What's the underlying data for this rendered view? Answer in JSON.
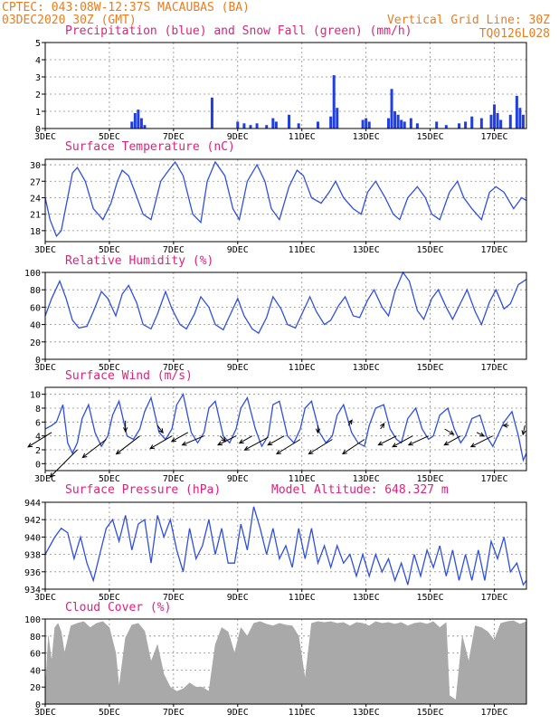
{
  "header": {
    "left_line1": "CPTEC:  043:08W-12:37S  MACAUBAS (BA)",
    "left_line2": "03DEC2020 30Z (GMT)",
    "right_line1": "Vertical Grid Line: 30Z",
    "right_line2": "TQ0126L028"
  },
  "colors": {
    "header": "#e87d1e",
    "title": "#e0207a",
    "precip": "#1f3fe0",
    "snow": "#1aa81a",
    "line": "#2f4fe0",
    "cloud": "#a9a9a9",
    "wind_arrow": "#000000"
  },
  "x_axis": {
    "start_day": 3,
    "end_day": 18,
    "ticks": [
      "3DEC",
      "5DEC",
      "7DEC",
      "9DEC",
      "11DEC",
      "13DEC",
      "15DEC",
      "17DEC"
    ],
    "tick_days": [
      3,
      5,
      7,
      9,
      11,
      13,
      15,
      17
    ]
  },
  "chart_data": [
    {
      "type": "bar",
      "title": "Precipitation (blue) and Snow Fall (green) (mm/h)",
      "ylim": [
        0,
        5
      ],
      "yticks": [
        0,
        1,
        2,
        3,
        4,
        5
      ],
      "grid": true,
      "series": [
        {
          "name": "Precipitation (blue)",
          "x": [
            5.7,
            5.8,
            5.9,
            6.0,
            6.1,
            8.2,
            9.0,
            9.2,
            9.4,
            9.6,
            9.9,
            10.1,
            10.2,
            10.6,
            10.9,
            11.5,
            11.9,
            12.0,
            12.1,
            12.9,
            13.0,
            13.1,
            13.7,
            13.8,
            13.9,
            14.0,
            14.1,
            14.2,
            14.4,
            14.6,
            15.2,
            15.5,
            15.9,
            16.1,
            16.3,
            16.6,
            16.9,
            17.0,
            17.1,
            17.2,
            17.5,
            17.7,
            17.8,
            17.9
          ],
          "values": [
            0.4,
            0.9,
            1.1,
            0.6,
            0.2,
            1.8,
            0.4,
            0.3,
            0.2,
            0.3,
            0.2,
            0.6,
            0.4,
            0.8,
            0.3,
            0.4,
            0.7,
            3.1,
            1.2,
            0.5,
            0.6,
            0.4,
            0.6,
            2.3,
            1.0,
            0.8,
            0.5,
            0.4,
            0.6,
            0.3,
            0.4,
            0.2,
            0.3,
            0.4,
            0.7,
            0.6,
            0.8,
            1.4,
            0.9,
            0.5,
            0.8,
            1.9,
            1.2,
            0.8
          ]
        },
        {
          "name": "Snow Fall (green)",
          "x": [],
          "values": []
        }
      ]
    },
    {
      "type": "line",
      "title": "Surface Temperature (nC)",
      "ylim": [
        16,
        31
      ],
      "yticks": [
        18,
        21,
        24,
        27,
        30
      ],
      "grid": true,
      "x": [
        3.0,
        3.15,
        3.35,
        3.5,
        3.7,
        3.85,
        4.0,
        4.25,
        4.5,
        4.8,
        5.05,
        5.25,
        5.4,
        5.6,
        5.8,
        6.05,
        6.3,
        6.6,
        6.85,
        7.05,
        7.3,
        7.6,
        7.85,
        8.05,
        8.3,
        8.6,
        8.85,
        9.05,
        9.3,
        9.6,
        9.85,
        10.05,
        10.3,
        10.6,
        10.85,
        11.05,
        11.3,
        11.6,
        11.85,
        12.05,
        12.3,
        12.6,
        12.85,
        13.05,
        13.3,
        13.6,
        13.85,
        14.05,
        14.3,
        14.6,
        14.85,
        15.05,
        15.3,
        15.6,
        15.85,
        16.05,
        16.3,
        16.6,
        16.85,
        17.05,
        17.3,
        17.6,
        17.85,
        18.0
      ],
      "values": [
        24,
        20,
        17,
        18,
        24,
        28.5,
        29.5,
        27,
        22,
        20,
        23,
        27,
        29,
        28,
        25,
        21,
        20,
        27,
        29,
        30.5,
        28,
        21,
        19.5,
        27,
        30.5,
        28,
        22,
        20,
        27,
        30,
        27,
        22,
        20,
        26,
        29,
        28,
        24,
        23,
        25,
        27,
        24,
        22,
        21,
        25,
        27,
        24,
        21,
        20,
        24,
        26,
        24,
        21,
        20,
        25,
        27,
        24,
        22,
        20,
        25,
        26,
        25,
        22,
        24,
        23.5
      ]
    },
    {
      "type": "line",
      "title": "Relative Humidity (%)",
      "ylim": [
        0,
        100
      ],
      "yticks": [
        0,
        20,
        40,
        60,
        80,
        100
      ],
      "grid": true,
      "x": [
        3.0,
        3.2,
        3.45,
        3.65,
        3.85,
        4.05,
        4.3,
        4.5,
        4.75,
        4.95,
        5.2,
        5.4,
        5.6,
        5.85,
        6.05,
        6.3,
        6.5,
        6.75,
        6.95,
        7.2,
        7.4,
        7.65,
        7.85,
        8.1,
        8.3,
        8.55,
        8.75,
        9.0,
        9.2,
        9.45,
        9.65,
        9.9,
        10.1,
        10.35,
        10.55,
        10.8,
        11.0,
        11.25,
        11.45,
        11.7,
        11.9,
        12.15,
        12.35,
        12.6,
        12.8,
        13.05,
        13.25,
        13.5,
        13.7,
        13.9,
        14.15,
        14.35,
        14.6,
        14.8,
        15.05,
        15.25,
        15.5,
        15.7,
        15.95,
        16.15,
        16.4,
        16.6,
        16.85,
        17.05,
        17.3,
        17.5,
        17.75,
        18.0
      ],
      "values": [
        50,
        70,
        90,
        70,
        45,
        36,
        38,
        55,
        78,
        70,
        50,
        75,
        85,
        65,
        40,
        35,
        52,
        78,
        58,
        40,
        35,
        52,
        72,
        60,
        40,
        34,
        50,
        70,
        50,
        35,
        30,
        48,
        72,
        58,
        40,
        36,
        52,
        72,
        55,
        40,
        45,
        62,
        72,
        50,
        48,
        68,
        80,
        60,
        50,
        78,
        100,
        90,
        56,
        46,
        70,
        80,
        60,
        46,
        65,
        80,
        55,
        40,
        66,
        80,
        58,
        64,
        86,
        92
      ]
    },
    {
      "type": "line",
      "title": "Surface Wind (m/s)",
      "ylim": [
        -1,
        11
      ],
      "yticks": [
        0,
        2,
        4,
        6,
        8,
        10
      ],
      "grid": true,
      "x": [
        3.0,
        3.2,
        3.35,
        3.55,
        3.7,
        3.85,
        4.0,
        4.15,
        4.35,
        4.55,
        4.75,
        4.95,
        5.1,
        5.3,
        5.55,
        5.75,
        5.95,
        6.1,
        6.3,
        6.55,
        6.75,
        6.95,
        7.1,
        7.3,
        7.55,
        7.75,
        7.95,
        8.1,
        8.3,
        8.55,
        8.75,
        8.95,
        9.1,
        9.3,
        9.55,
        9.75,
        9.95,
        10.1,
        10.3,
        10.55,
        10.75,
        10.95,
        11.1,
        11.3,
        11.55,
        11.75,
        11.95,
        12.1,
        12.3,
        12.55,
        12.75,
        12.95,
        13.1,
        13.3,
        13.55,
        13.75,
        13.95,
        14.1,
        14.3,
        14.55,
        14.75,
        14.95,
        15.1,
        15.3,
        15.55,
        15.75,
        15.95,
        16.1,
        16.3,
        16.55,
        16.75,
        16.95,
        17.1,
        17.3,
        17.55,
        17.75,
        17.9,
        18.0
      ],
      "values": [
        5,
        5.5,
        6,
        8.5,
        3,
        1.5,
        3,
        6.5,
        8.5,
        4.5,
        2.5,
        4,
        7,
        9,
        4,
        3.5,
        5,
        7.5,
        9.5,
        4.5,
        3.5,
        5,
        8.5,
        10,
        4.5,
        3,
        4.5,
        8,
        9,
        4,
        3,
        5,
        8,
        9.5,
        5,
        2.5,
        4,
        8.5,
        9,
        4,
        3,
        5,
        8,
        9,
        4.5,
        3,
        4,
        7,
        8.5,
        4.5,
        3,
        2.5,
        5.5,
        8,
        8.5,
        5,
        3.5,
        3,
        6.5,
        8,
        5,
        3.5,
        4,
        7,
        8,
        5,
        3,
        4,
        6.5,
        7,
        4,
        2.5,
        4,
        6,
        7.5,
        4,
        0.5,
        1.5
      ],
      "barbs": [
        {
          "day": 3.2,
          "y": 4.5,
          "u": 1.3,
          "v": 0.8
        },
        {
          "day": 4.0,
          "y": 2.0,
          "u": 1.5,
          "v": 1.5
        },
        {
          "day": 4.9,
          "y": 3.5,
          "u": 1.3,
          "v": 1.0
        },
        {
          "day": 5.5,
          "y": 6.2,
          "u": 0.0,
          "v": 0.6
        },
        {
          "day": 5.95,
          "y": 4.0,
          "u": 1.3,
          "v": 1.0
        },
        {
          "day": 6.5,
          "y": 5.5,
          "u": -0.3,
          "v": 0.4
        },
        {
          "day": 6.95,
          "y": 4.0,
          "u": 1.2,
          "v": 0.7
        },
        {
          "day": 7.45,
          "y": 4.5,
          "u": 0.9,
          "v": 0.5
        },
        {
          "day": 7.95,
          "y": 4.0,
          "u": 1.2,
          "v": 0.5
        },
        {
          "day": 8.45,
          "y": 4.0,
          "u": -0.3,
          "v": 0.3
        },
        {
          "day": 8.95,
          "y": 4.0,
          "u": 1.0,
          "v": 0.5
        },
        {
          "day": 9.45,
          "y": 4.0,
          "u": 0.7,
          "v": 0.4
        },
        {
          "day": 9.95,
          "y": 3.8,
          "u": 1.3,
          "v": 0.7
        },
        {
          "day": 10.45,
          "y": 4.0,
          "u": 0.9,
          "v": 0.5
        },
        {
          "day": 10.95,
          "y": 3.5,
          "u": 1.3,
          "v": 0.8
        },
        {
          "day": 11.5,
          "y": 5.5,
          "u": 0.0,
          "v": 0.4
        },
        {
          "day": 11.95,
          "y": 3.5,
          "u": 1.3,
          "v": 0.8
        },
        {
          "day": 12.45,
          "y": 5.5,
          "u": -0.2,
          "v": -0.3
        },
        {
          "day": 12.95,
          "y": 3.5,
          "u": 1.2,
          "v": 0.8
        },
        {
          "day": 13.45,
          "y": 5.0,
          "u": -0.2,
          "v": -0.3
        },
        {
          "day": 13.95,
          "y": 4.0,
          "u": 1.0,
          "v": 0.5
        },
        {
          "day": 14.45,
          "y": 4.0,
          "u": 1.1,
          "v": 0.6
        },
        {
          "day": 14.95,
          "y": 4.0,
          "u": 1.1,
          "v": 0.5
        },
        {
          "day": 15.45,
          "y": 5.0,
          "u": -0.5,
          "v": 0.3
        },
        {
          "day": 15.95,
          "y": 4.0,
          "u": 0.9,
          "v": 0.5
        },
        {
          "day": 16.45,
          "y": 4.5,
          "u": -0.4,
          "v": 0.2
        },
        {
          "day": 16.95,
          "y": 4.0,
          "u": 1.2,
          "v": 0.6
        },
        {
          "day": 17.45,
          "y": 5.5,
          "u": 0.3,
          "v": 0.0
        },
        {
          "day": 17.95,
          "y": 5.5,
          "u": 0.1,
          "v": 0.5
        }
      ]
    },
    {
      "type": "line",
      "title": "Surface Pressure (hPa)",
      "annotation": "Model Altitude: 648.327 m",
      "ylim": [
        934,
        944
      ],
      "yticks": [
        934,
        936,
        938,
        940,
        942,
        944
      ],
      "grid": true,
      "x": [
        3.0,
        3.15,
        3.3,
        3.5,
        3.7,
        3.9,
        4.1,
        4.3,
        4.5,
        4.7,
        4.9,
        5.1,
        5.3,
        5.5,
        5.7,
        5.9,
        6.1,
        6.3,
        6.5,
        6.7,
        6.9,
        7.1,
        7.3,
        7.5,
        7.7,
        7.9,
        8.1,
        8.3,
        8.5,
        8.7,
        8.9,
        9.1,
        9.3,
        9.5,
        9.7,
        9.9,
        10.1,
        10.3,
        10.5,
        10.7,
        10.9,
        11.1,
        11.3,
        11.5,
        11.7,
        11.9,
        12.1,
        12.3,
        12.5,
        12.7,
        12.9,
        13.1,
        13.3,
        13.5,
        13.7,
        13.9,
        14.1,
        14.3,
        14.5,
        14.7,
        14.9,
        15.1,
        15.3,
        15.5,
        15.7,
        15.9,
        16.1,
        16.3,
        16.5,
        16.7,
        16.9,
        17.1,
        17.3,
        17.5,
        17.7,
        17.9,
        18.0
      ],
      "values": [
        938,
        939,
        940,
        941,
        940.5,
        937.5,
        940,
        937,
        935,
        938,
        941,
        942,
        939.5,
        942.5,
        938.5,
        941.5,
        942,
        937,
        942.5,
        940,
        942,
        938.5,
        936,
        941,
        937.5,
        939,
        942,
        938,
        941,
        937,
        937,
        941.5,
        938.5,
        943.5,
        941,
        938,
        941,
        937.5,
        939,
        936.5,
        941,
        937.5,
        941,
        937,
        939,
        936.5,
        939,
        937,
        938,
        935.5,
        938,
        935.5,
        938,
        936,
        937.5,
        935,
        937,
        934.5,
        938,
        935.5,
        938.5,
        936.5,
        939,
        935.5,
        938.5,
        935,
        938,
        935,
        938.5,
        935,
        939.5,
        937.5,
        940,
        936,
        937,
        934.5,
        935
      ]
    },
    {
      "type": "area",
      "title": "Cloud Cover (%)",
      "ylim": [
        0,
        100
      ],
      "yticks": [
        0,
        20,
        40,
        60,
        80,
        100
      ],
      "grid": true,
      "x": [
        3.0,
        3.1,
        3.2,
        3.3,
        3.4,
        3.5,
        3.6,
        3.8,
        4.0,
        4.2,
        4.4,
        4.6,
        4.8,
        5.0,
        5.2,
        5.3,
        5.5,
        5.7,
        5.9,
        6.1,
        6.3,
        6.5,
        6.7,
        6.9,
        7.1,
        7.3,
        7.5,
        7.7,
        7.9,
        8.1,
        8.3,
        8.5,
        8.7,
        8.9,
        9.1,
        9.3,
        9.5,
        9.7,
        9.9,
        10.1,
        10.3,
        10.5,
        10.7,
        10.9,
        11.1,
        11.3,
        11.5,
        11.7,
        11.9,
        12.1,
        12.3,
        12.5,
        12.7,
        12.9,
        13.1,
        13.3,
        13.5,
        13.7,
        13.9,
        14.1,
        14.3,
        14.5,
        14.7,
        14.9,
        15.1,
        15.3,
        15.5,
        15.6,
        15.8,
        16.0,
        16.2,
        16.4,
        16.6,
        16.8,
        17.0,
        17.2,
        17.4,
        17.6,
        17.8,
        18.0
      ],
      "values": [
        15,
        80,
        50,
        90,
        95,
        85,
        60,
        92,
        95,
        97,
        90,
        95,
        97,
        90,
        60,
        20,
        78,
        93,
        95,
        86,
        50,
        70,
        35,
        20,
        15,
        18,
        25,
        20,
        20,
        15,
        70,
        90,
        85,
        60,
        90,
        80,
        95,
        97,
        94,
        92,
        95,
        93,
        92,
        80,
        30,
        95,
        97,
        96,
        97,
        95,
        96,
        92,
        96,
        95,
        92,
        97,
        95,
        96,
        94,
        96,
        92,
        95,
        96,
        94,
        97,
        90,
        96,
        10,
        5,
        80,
        50,
        92,
        90,
        85,
        75,
        95,
        97,
        98,
        94,
        97
      ]
    }
  ]
}
